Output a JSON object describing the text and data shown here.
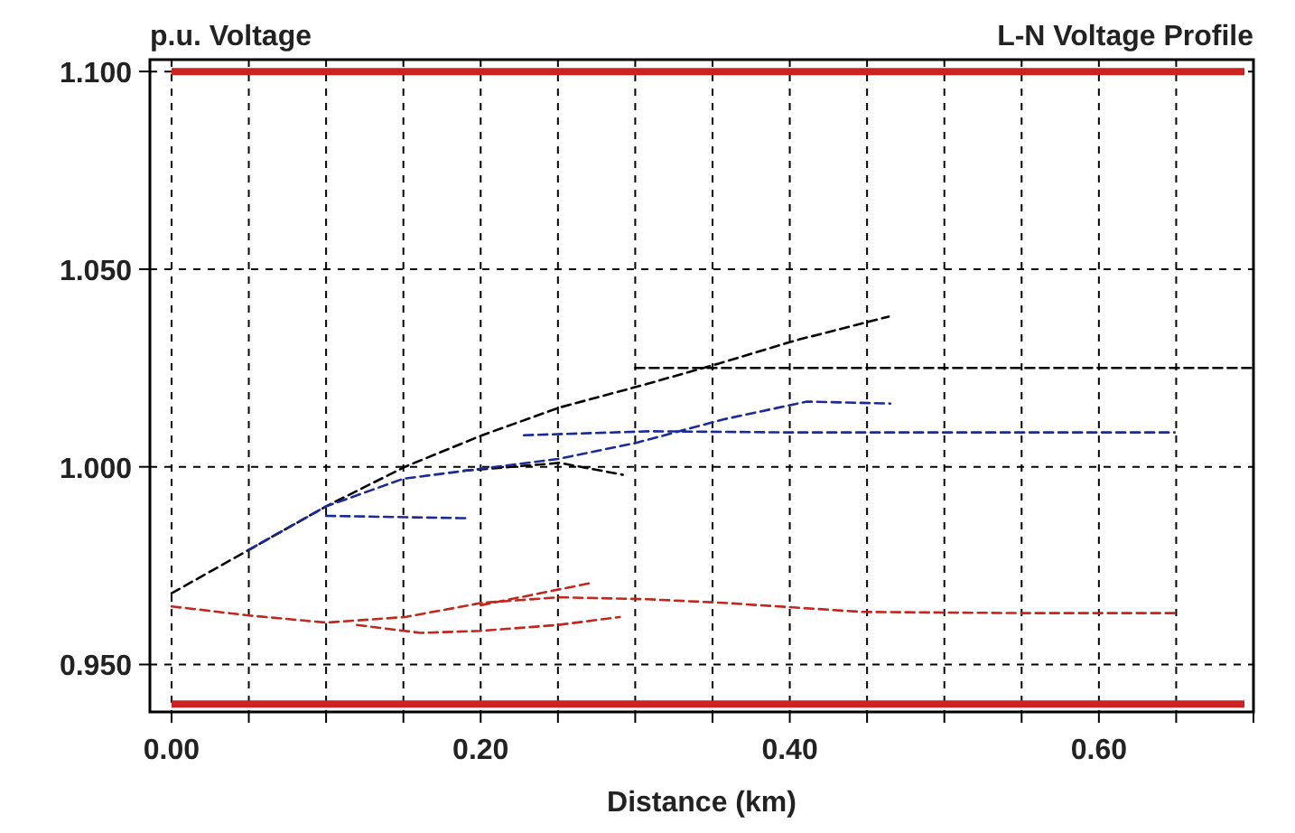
{
  "chart_data": {
    "type": "line",
    "title": "L-N Voltage Profile",
    "ylabel": "p.u. Voltage",
    "xlabel": "Distance (km)",
    "xlim": [
      -0.014,
      0.7
    ],
    "ylim": [
      0.938,
      1.103
    ],
    "xticks": [
      {
        "value": 0,
        "label": "0.00"
      },
      {
        "value": 0.05,
        "label": null
      },
      {
        "value": 0.1,
        "label": null
      },
      {
        "value": 0.15,
        "label": null
      },
      {
        "value": 0.2,
        "label": "0.20"
      },
      {
        "value": 0.25,
        "label": null
      },
      {
        "value": 0.3,
        "label": null
      },
      {
        "value": 0.35,
        "label": null
      },
      {
        "value": 0.4,
        "label": "0.40"
      },
      {
        "value": 0.45,
        "label": null
      },
      {
        "value": 0.5,
        "label": null
      },
      {
        "value": 0.55,
        "label": null
      },
      {
        "value": 0.6,
        "label": "0.60"
      },
      {
        "value": 0.65,
        "label": null
      },
      {
        "value": 0.7,
        "label": null
      }
    ],
    "yticks": [
      {
        "value": 0.95,
        "label": "0.950"
      },
      {
        "value": 1.0,
        "label": "1.000"
      },
      {
        "value": 1.05,
        "label": "1.050"
      },
      {
        "value": 1.1,
        "label": "1.100"
      }
    ],
    "grid": true,
    "line_style": "dashed",
    "marker": "none",
    "ref_lines": [
      {
        "axis": "y",
        "value": 1.1,
        "color": "#cc2222",
        "line_style": "solid"
      },
      {
        "axis": "y",
        "value": 0.94,
        "color": "#cc2222",
        "line_style": "solid"
      }
    ],
    "series": [
      {
        "color": "#000000",
        "x": [
          0,
          0.05,
          0.1,
          0.151,
          0.201,
          0.251,
          0.308,
          0.353,
          0.404,
          0.464
        ],
        "values": [
          0.968,
          0.979,
          0.99,
          1.0,
          1.008,
          1.015,
          1.021,
          1.026,
          1.032,
          1.038
        ]
      },
      {
        "color": "#000000",
        "x": [
          0.3,
          0.4,
          0.5,
          0.6,
          0.7
        ],
        "values": [
          1.025,
          1.025,
          1.025,
          1.025,
          1.025
        ]
      },
      {
        "color": "#000000",
        "x": [
          0.189,
          0.251,
          0.292
        ],
        "values": [
          0.999,
          1.001,
          0.998
        ]
      },
      {
        "color": "#1a2a9a",
        "x": [
          0.05,
          0.1,
          0.15,
          0.19,
          0.25,
          0.3,
          0.357,
          0.411,
          0.465
        ],
        "values": [
          0.979,
          0.99,
          0.997,
          0.999,
          1.002,
          1.006,
          1.012,
          1.0165,
          1.016
        ]
      },
      {
        "color": "#1a2a9a",
        "x": [
          0.228,
          0.31,
          0.4,
          0.5,
          0.649
        ],
        "values": [
          1.008,
          1.009,
          1.0087,
          1.0087,
          1.0087
        ]
      },
      {
        "color": "#1a2a9a",
        "x": [
          0.1,
          0.191
        ],
        "values": [
          0.9876,
          0.987
        ]
      },
      {
        "color": "#c0281e",
        "x": [
          0,
          0.05,
          0.1,
          0.151,
          0.201,
          0.251,
          0.308,
          0.357,
          0.447,
          0.55,
          0.649
        ],
        "values": [
          0.9647,
          0.9624,
          0.9606,
          0.962,
          0.9656,
          0.967,
          0.9665,
          0.9656,
          0.9633,
          0.963,
          0.963
        ]
      },
      {
        "color": "#c0281e",
        "x": [
          0.12,
          0.161,
          0.2,
          0.25,
          0.29
        ],
        "values": [
          0.96,
          0.958,
          0.9585,
          0.96,
          0.962
        ]
      },
      {
        "color": "#c0281e",
        "x": [
          0.2,
          0.27
        ],
        "values": [
          0.965,
          0.9705
        ]
      }
    ]
  }
}
